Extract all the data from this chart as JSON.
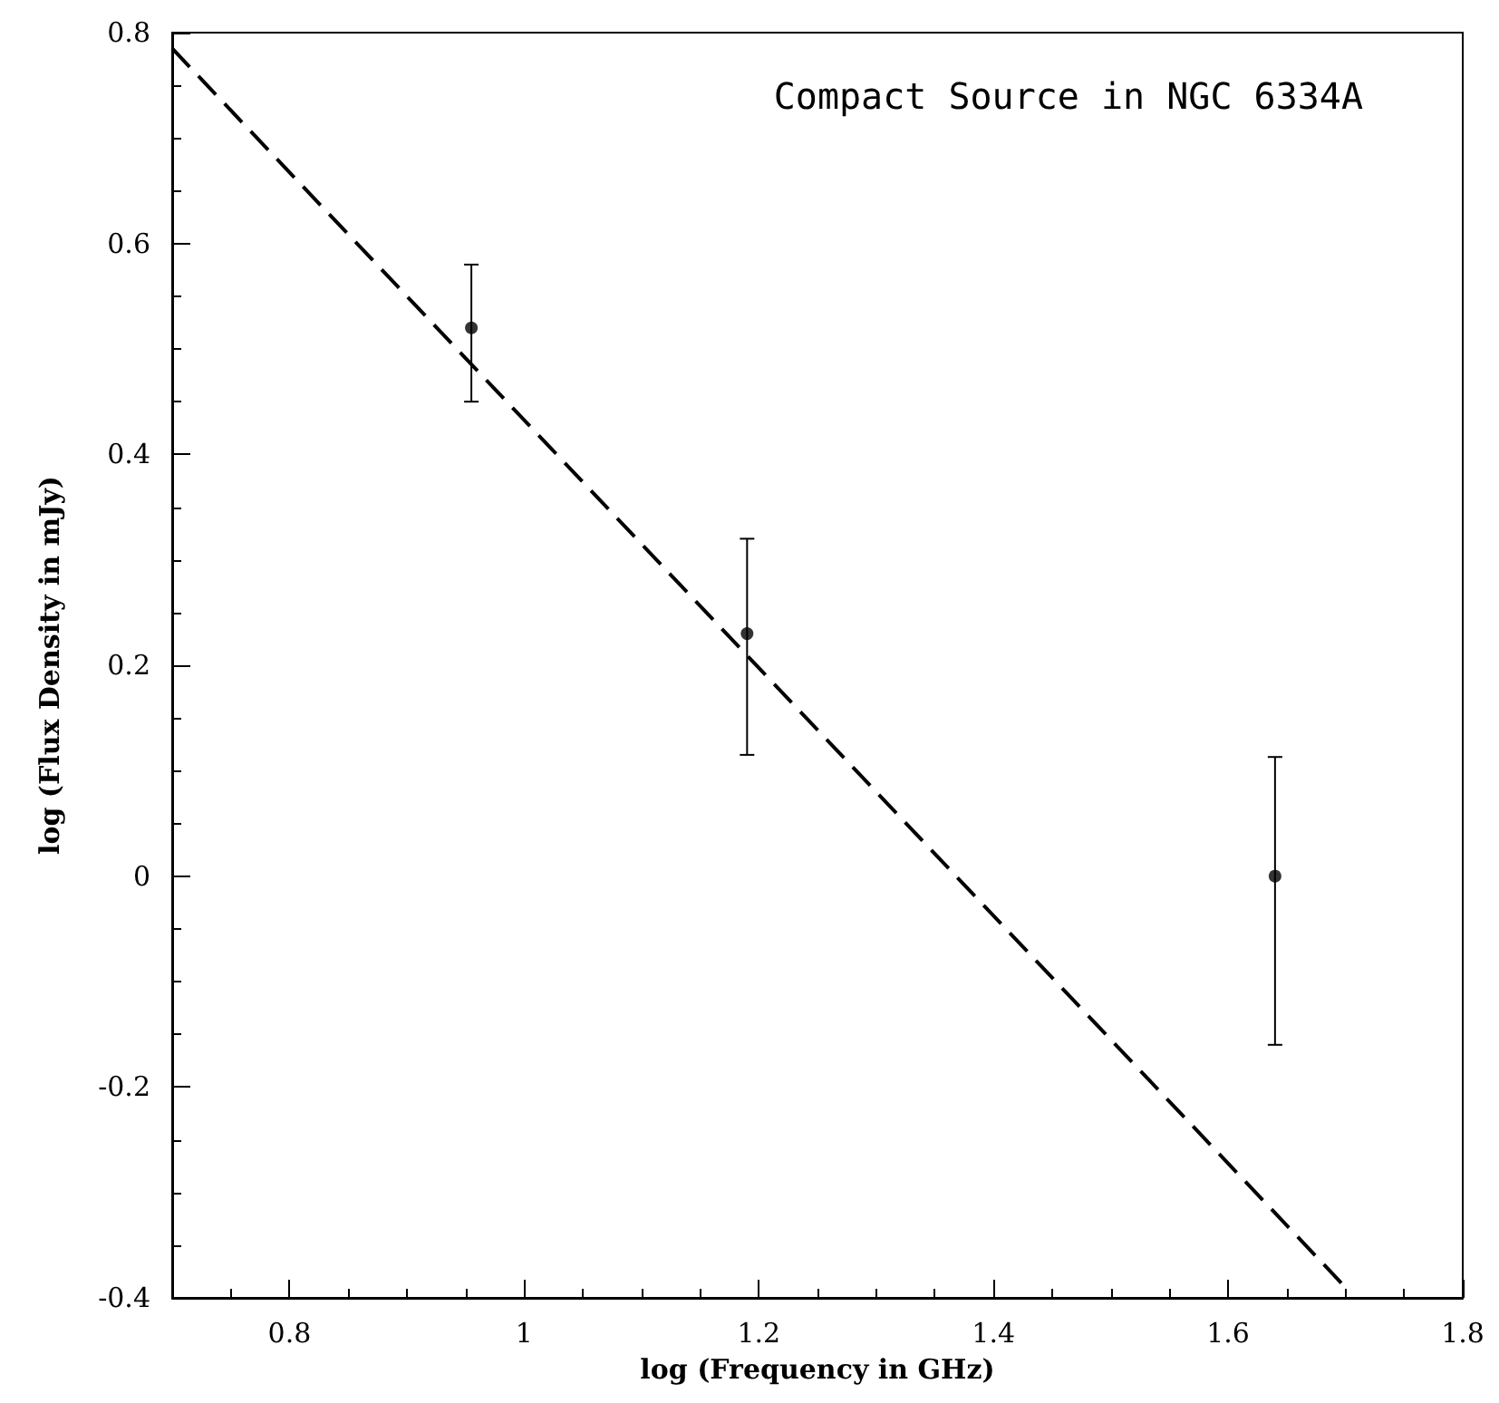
{
  "chart_data": {
    "type": "scatter",
    "title": "Compact Source in NGC 6334A",
    "xlabel": "log (Frequency in GHz)",
    "ylabel": "log (Flux Density in mJy)",
    "xlim": [
      0.7,
      1.8
    ],
    "xticks": [
      0.8,
      1,
      1.2,
      1.4,
      1.6,
      1.8
    ],
    "ylim": [
      -0.4,
      0.8
    ],
    "yticks": [
      -0.4,
      -0.2,
      0,
      0.2,
      0.4,
      0.6,
      0.8
    ],
    "grid": false,
    "series": [
      {
        "type": "scatter",
        "marker": "circle",
        "color": "#000000",
        "x": [
          0.955,
          1.19,
          1.64
        ],
        "values": [
          0.52,
          0.23,
          0
        ],
        "errors": [
          [
            0.45,
            0.58
          ],
          [
            0.115,
            0.32
          ],
          [
            -0.16,
            0.113
          ]
        ]
      },
      {
        "type": "line",
        "color": "#000000",
        "line_style": "dashed",
        "x": [
          0.7,
          1.7
        ],
        "values": [
          0.785,
          -0.39
        ]
      }
    ]
  }
}
